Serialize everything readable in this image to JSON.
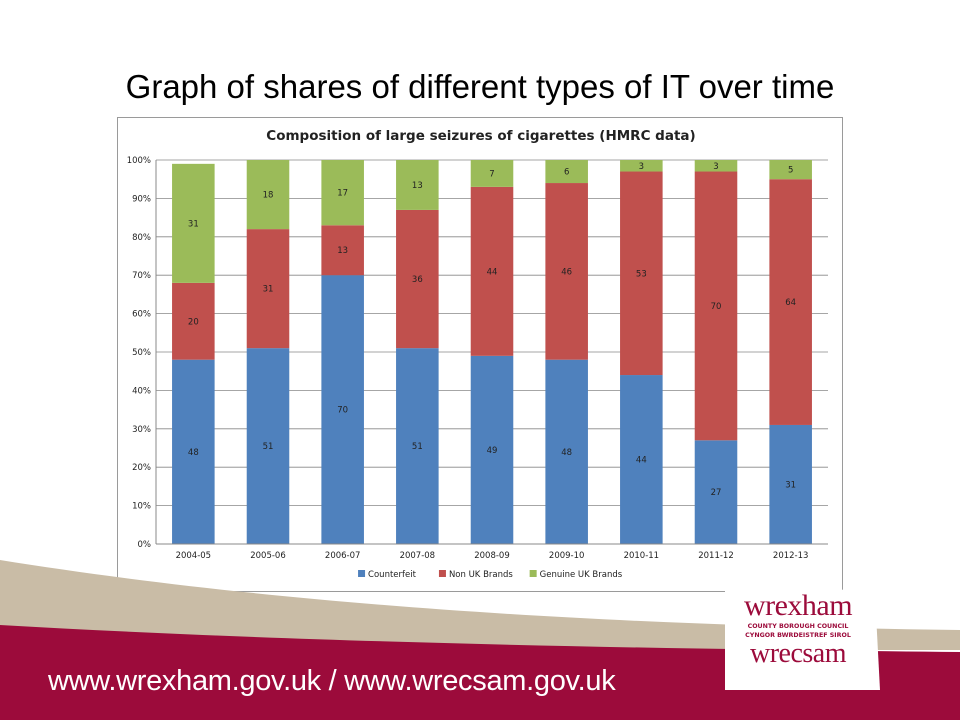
{
  "slide": {
    "title": "Graph of shares of different types of IT over time",
    "footer_url": "www.wrexham.gov.uk / www.wrecsam.gov.uk",
    "logo": {
      "main": "wrexham",
      "sub1": "COUNTY BOROUGH COUNCIL",
      "sub2": "CYNGOR BWRDEISTREF SIROL",
      "main2": "wrecsam"
    },
    "colors": {
      "footer": "#9c0b3b",
      "band": "#c9bca6"
    }
  },
  "chart_data": {
    "type": "bar",
    "stacked": true,
    "title": "Composition of large seizures of cigarettes (HMRC data)",
    "categories": [
      "2004-05",
      "2005-06",
      "2006-07",
      "2007-08",
      "2008-09",
      "2009-10",
      "2010-11",
      "2011-12",
      "2012-13"
    ],
    "series": [
      {
        "name": "Counterfeit",
        "color": "#4f81bd",
        "values": [
          48,
          51,
          70,
          51,
          49,
          48,
          44,
          27,
          31
        ]
      },
      {
        "name": "Non UK Brands",
        "color": "#c0504d",
        "values": [
          20,
          31,
          13,
          36,
          44,
          46,
          53,
          70,
          64
        ]
      },
      {
        "name": "Genuine UK Brands",
        "color": "#9bbb59",
        "values": [
          31,
          18,
          17,
          13,
          7,
          6,
          3,
          3,
          5
        ]
      }
    ],
    "ylim": [
      0,
      100
    ],
    "yticks": [
      "0%",
      "10%",
      "20%",
      "30%",
      "40%",
      "50%",
      "60%",
      "70%",
      "80%",
      "90%",
      "100%"
    ],
    "grid": true,
    "legend": "bottom"
  }
}
